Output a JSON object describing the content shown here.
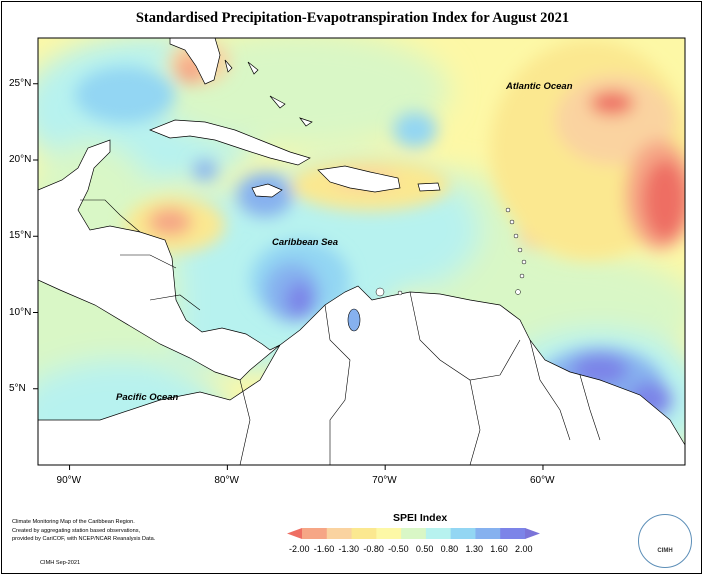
{
  "title": "Standardised Precipitation-Evapotranspiration Index for August 2021",
  "map": {
    "lon_range": [
      -92,
      -51
    ],
    "lat_range": [
      0,
      28
    ],
    "lon_ticks": [
      {
        "value": -90,
        "label": "90°W"
      },
      {
        "value": -80,
        "label": "80°W"
      },
      {
        "value": -70,
        "label": "70°W"
      },
      {
        "value": -60,
        "label": "60°W"
      }
    ],
    "lat_ticks": [
      {
        "value": 25,
        "label": "25°N"
      },
      {
        "value": 20,
        "label": "20°N"
      },
      {
        "value": 15,
        "label": "15°N"
      },
      {
        "value": 10,
        "label": "10°N"
      },
      {
        "value": 5,
        "label": "5°N"
      }
    ],
    "labels": {
      "atlantic": "Atlantic Ocean",
      "caribbean": "Caribbean Sea",
      "pacific": "Pacific Ocean"
    }
  },
  "legend": {
    "title": "SPEI Index",
    "ticks": [
      "-2.00",
      "-1.60",
      "-1.30",
      "-0.80",
      "-0.50",
      "0.50",
      "0.80",
      "1.30",
      "1.60",
      "2.00"
    ],
    "colors": [
      "#ee6e63",
      "#f6a686",
      "#fad3a0",
      "#fbe890",
      "#fdf8a6",
      "#d9f7c6",
      "#b7f2ef",
      "#93d6f3",
      "#86b1ef",
      "#7c84e8",
      "#7b74d8"
    ]
  },
  "credit": {
    "lines": [
      "Climate Monitoring Map of the Caribbean Region.",
      "Created by aggregating station based observations,",
      "provided by CariCOF, with NCEP/NCAR Reanalysis Data."
    ],
    "date": "CIMH Sep-2021"
  },
  "logo": {
    "text": "CIMH"
  }
}
